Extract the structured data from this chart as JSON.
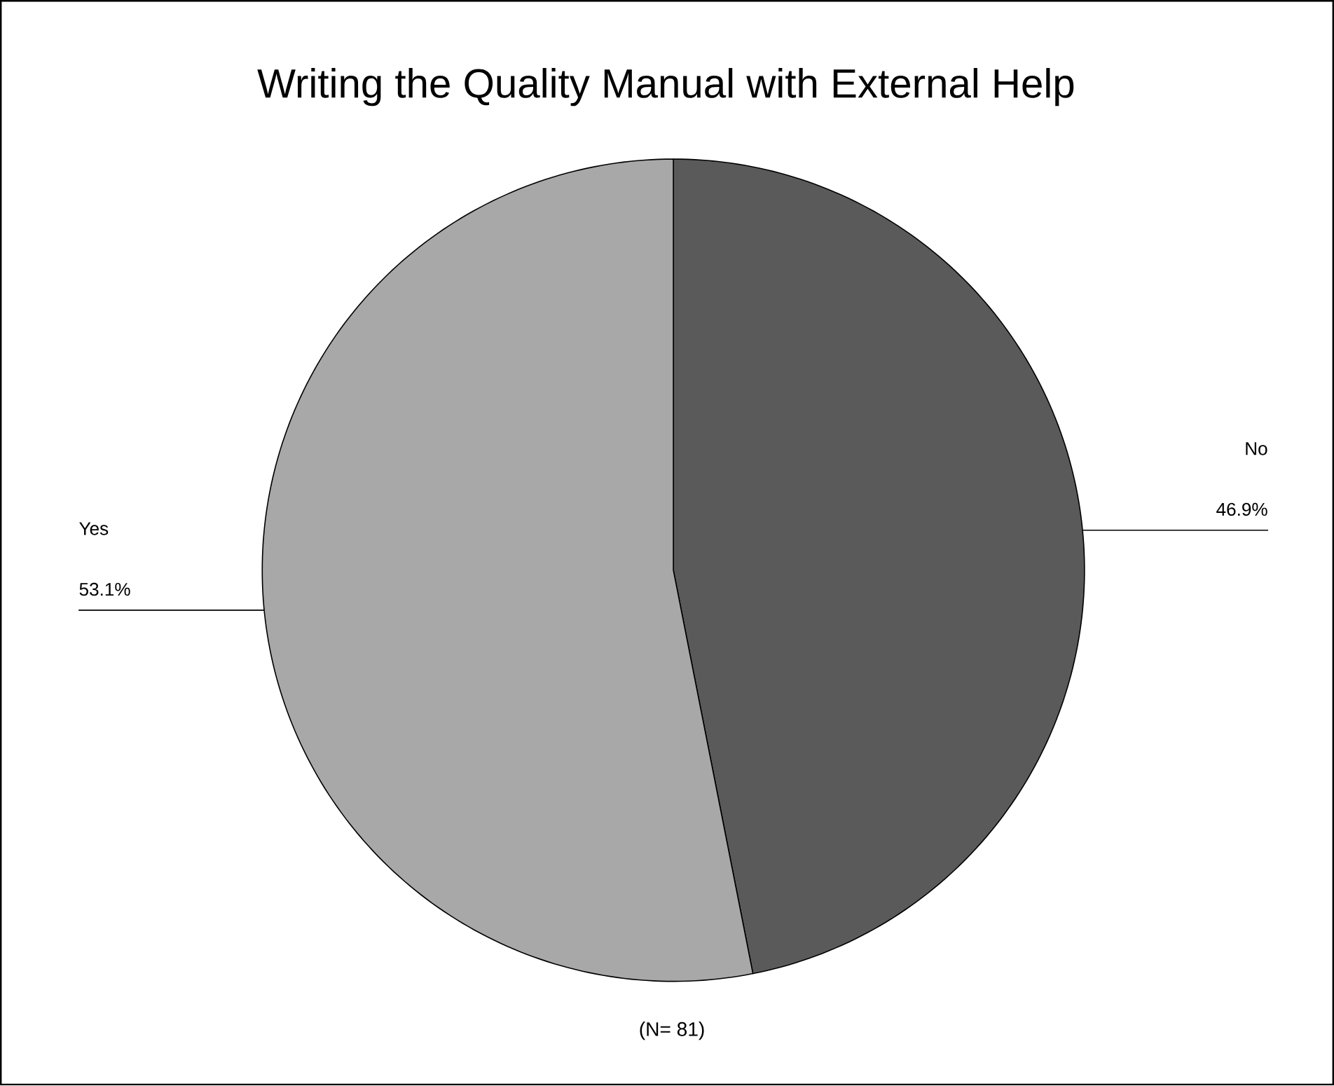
{
  "chart_data": {
    "type": "pie",
    "title": "Writing the Quality Manual with External Help",
    "categories": [
      "No",
      "Yes"
    ],
    "values": [
      46.9,
      53.1
    ],
    "colors": [
      "#5a5a5a",
      "#a8a8a8"
    ],
    "value_labels": [
      "46.9%",
      "53.1%"
    ],
    "annotations": [
      "(N= 81)"
    ]
  }
}
